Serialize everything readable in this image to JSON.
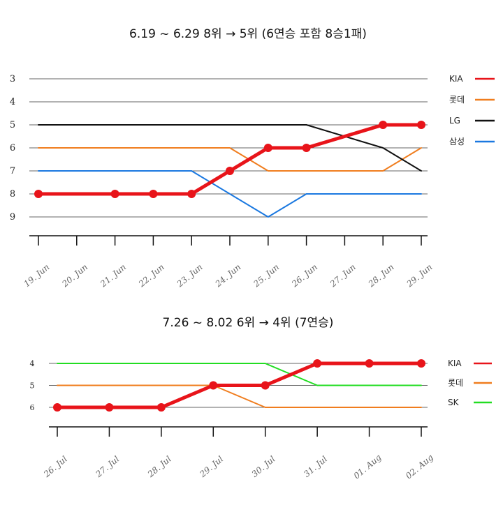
{
  "chart_data": [
    {
      "type": "line",
      "title": "6.19 ~ 6.29    8위 → 5위 (6연승 포함 8승1패)",
      "y_axis_inverted": true,
      "ylim": [
        3,
        9
      ],
      "yticks": [
        "3",
        "4",
        "5",
        "6",
        "7",
        "8",
        "9"
      ],
      "grid": "horizontal",
      "legend_position": "right",
      "x": [
        "19. Jun",
        "20. Jun",
        "21. Jun",
        "22. Jun",
        "23. Jun",
        "24. Jun",
        "25. Jun",
        "26. Jun",
        "27. Jun",
        "28. Jun",
        "29. Jun"
      ],
      "series": [
        {
          "name": "KIA",
          "color": "#e8141a",
          "highlight": true,
          "values": [
            8,
            null,
            8,
            8,
            8,
            7,
            6,
            6,
            null,
            5,
            5
          ]
        },
        {
          "name": "롯데",
          "color": "#f07d1e",
          "highlight": false,
          "values": [
            6,
            null,
            null,
            null,
            null,
            6,
            7,
            7,
            null,
            7,
            6
          ]
        },
        {
          "name": "LG",
          "color": "#111111",
          "highlight": false,
          "values": [
            5,
            null,
            null,
            null,
            null,
            null,
            null,
            5,
            null,
            6,
            7
          ]
        },
        {
          "name": "삼성",
          "color": "#1a78e0",
          "highlight": false,
          "values": [
            7,
            null,
            null,
            null,
            7,
            null,
            9,
            8,
            null,
            null,
            8
          ]
        }
      ]
    },
    {
      "type": "line",
      "title": "7.26 ~ 8.02    6위 → 4위 (7연승)",
      "y_axis_inverted": true,
      "ylim": [
        4,
        6
      ],
      "yticks": [
        "4",
        "5",
        "6"
      ],
      "grid": "horizontal",
      "legend_position": "right",
      "x": [
        "26. Jul",
        "27. Jul",
        "28. Jul",
        "29. Jul",
        "30. Jul",
        "31. Jul",
        "01. Aug",
        "02. Aug"
      ],
      "series": [
        {
          "name": "KIA",
          "color": "#e8141a",
          "highlight": true,
          "values": [
            6,
            6,
            6,
            5,
            5,
            4,
            4,
            4
          ]
        },
        {
          "name": "롯데",
          "color": "#f07d1e",
          "highlight": false,
          "values": [
            5,
            null,
            null,
            5,
            6,
            null,
            null,
            6
          ]
        },
        {
          "name": "SK",
          "color": "#22dd22",
          "highlight": false,
          "values": [
            4,
            null,
            null,
            null,
            4,
            5,
            null,
            5
          ]
        }
      ]
    }
  ]
}
